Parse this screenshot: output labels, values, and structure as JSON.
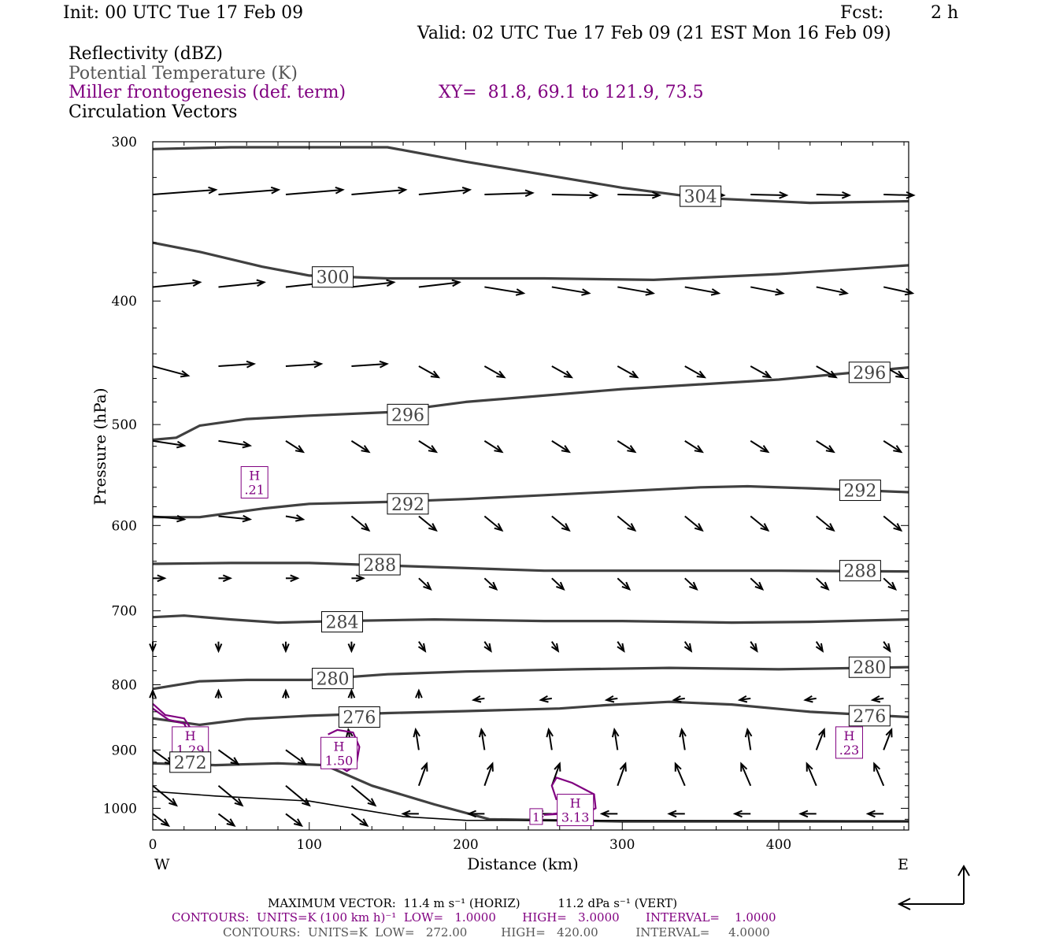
{
  "header": {
    "init": "Init: 00 UTC Tue 17 Feb 09",
    "fcst_label": "Fcst:",
    "fcst_value": "2 h",
    "valid": "Valid: 02 UTC Tue 17 Feb 09 (21 EST Mon 16 Feb 09)",
    "field1": "Reflectivity (dBZ)",
    "field2": "Potential Temperature (K)",
    "field3": "Miller frontogenesis (def. term)",
    "xy": "XY=  81.8, 69.1 to 121.9, 73.5",
    "field4": "Circulation Vectors"
  },
  "footer": {
    "max_vector_line": "MAXIMUM VECTOR:  11.4 m s⁻¹ (HORIZ)          11.2 dPa s⁻¹ (VERT)",
    "contours_purple": "CONTOURS:  UNITS=K (100 km h)⁻¹  LOW=   1.0000       HIGH=   3.0000       INTERVAL=    1.0000",
    "contours_gray": "CONTOURS:  UNITS=K  LOW=   272.00         HIGH=   420.00          INTERVAL=     4.0000"
  },
  "colors": {
    "theta": "#404040",
    "frontogenesis": "#800080",
    "vectors": "#000000"
  },
  "chart_data": {
    "type": "line",
    "xlabel": "Distance (km)",
    "ylabel": "Pressure (hPa)",
    "xlim": [
      0,
      483
    ],
    "ylim": [
      1040,
      300
    ],
    "y_scale": "log-pressure (inverted)",
    "x_ticks": [
      0,
      100,
      200,
      300,
      400
    ],
    "y_ticks": [
      300,
      400,
      500,
      600,
      700,
      800,
      900,
      1000
    ],
    "x_end_labels": {
      "left": "W",
      "right": "E"
    },
    "theta_contours": [
      {
        "label": "304",
        "label_at": [
          350,
          331
        ],
        "points": [
          [
            0,
            304
          ],
          [
            50,
            303
          ],
          [
            150,
            303
          ],
          [
            200,
            311
          ],
          [
            300,
            326
          ],
          [
            350,
            332
          ],
          [
            420,
            335
          ],
          [
            483,
            334
          ]
        ]
      },
      {
        "label": "300",
        "label_at": [
          115,
          383
        ],
        "points": [
          [
            0,
            360
          ],
          [
            30,
            366
          ],
          [
            70,
            376
          ],
          [
            100,
            382
          ],
          [
            150,
            384
          ],
          [
            250,
            384
          ],
          [
            320,
            385
          ],
          [
            400,
            381
          ],
          [
            483,
            375
          ]
        ]
      },
      {
        "label": "296",
        "label_at": [
          163,
          491
        ],
        "points": [
          [
            0,
            514
          ],
          [
            15,
            512
          ],
          [
            30,
            501
          ],
          [
            60,
            495
          ],
          [
            100,
            492
          ],
          [
            150,
            489
          ],
          [
            200,
            480
          ],
          [
            300,
            469
          ],
          [
            400,
            461
          ],
          [
            483,
            451
          ]
        ]
      },
      {
        "label": "296",
        "label_at": [
          458,
          455
        ],
        "points": []
      },
      {
        "label": "292",
        "label_at": [
          163,
          577
        ],
        "points": [
          [
            0,
            591
          ],
          [
            30,
            591
          ],
          [
            70,
            582
          ],
          [
            100,
            577
          ],
          [
            150,
            575
          ],
          [
            200,
            572
          ],
          [
            250,
            568
          ],
          [
            300,
            564
          ],
          [
            350,
            560
          ],
          [
            380,
            559
          ],
          [
            420,
            561
          ],
          [
            483,
            565
          ]
        ]
      },
      {
        "label": "292",
        "label_at": [
          452,
          563
        ],
        "points": []
      },
      {
        "label": "288",
        "label_at": [
          145,
          644
        ],
        "points": [
          [
            0,
            643
          ],
          [
            50,
            642
          ],
          [
            100,
            642
          ],
          [
            150,
            645
          ],
          [
            200,
            648
          ],
          [
            250,
            651
          ],
          [
            300,
            651
          ],
          [
            350,
            651
          ],
          [
            400,
            651
          ],
          [
            483,
            652
          ]
        ]
      },
      {
        "label": "288",
        "label_at": [
          452,
          651
        ],
        "points": []
      },
      {
        "label": "284",
        "label_at": [
          121,
          714
        ],
        "points": [
          [
            0,
            708
          ],
          [
            20,
            706
          ],
          [
            50,
            711
          ],
          [
            80,
            715
          ],
          [
            120,
            713
          ],
          [
            180,
            711
          ],
          [
            250,
            713
          ],
          [
            300,
            713
          ],
          [
            370,
            715
          ],
          [
            420,
            714
          ],
          [
            483,
            711
          ]
        ]
      },
      {
        "label": "284",
        "label_at": [
          121,
          714
        ],
        "points": []
      },
      {
        "label": "280",
        "label_at": [
          115,
          791
        ],
        "points": [
          [
            0,
            806
          ],
          [
            30,
            795
          ],
          [
            60,
            793
          ],
          [
            100,
            793
          ],
          [
            150,
            785
          ],
          [
            200,
            781
          ],
          [
            270,
            778
          ],
          [
            330,
            776
          ],
          [
            400,
            778
          ],
          [
            483,
            775
          ]
        ]
      },
      {
        "label": "280",
        "label_at": [
          458,
          775
        ],
        "points": []
      },
      {
        "label": "276",
        "label_at": [
          132,
          848
        ],
        "points": [
          [
            0,
            850
          ],
          [
            30,
            860
          ],
          [
            60,
            851
          ],
          [
            100,
            846
          ],
          [
            150,
            842
          ],
          [
            200,
            839
          ],
          [
            260,
            835
          ],
          [
            290,
            830
          ],
          [
            330,
            825
          ],
          [
            370,
            829
          ],
          [
            420,
            840
          ],
          [
            483,
            848
          ]
        ]
      },
      {
        "label": "276",
        "label_at": [
          458,
          846
        ],
        "points": []
      },
      {
        "label": "272",
        "label_at": [
          24,
          920
        ],
        "points": [
          [
            0,
            922
          ],
          [
            40,
            925
          ],
          [
            80,
            922
          ],
          [
            110,
            925
          ],
          [
            140,
            960
          ],
          [
            180,
            993
          ],
          [
            215,
            1020
          ],
          [
            300,
            1024
          ],
          [
            483,
            1024
          ]
        ]
      },
      {
        "label": "",
        "label_at": null,
        "points": [
          [
            0,
            970
          ],
          [
            40,
            978
          ],
          [
            100,
            987
          ],
          [
            160,
            1015
          ],
          [
            200,
            1022
          ],
          [
            483,
            1023
          ]
        ]
      }
    ],
    "frontogenesis_maxima": [
      {
        "label": "H",
        "value": ".21",
        "x": 65,
        "p": 555
      },
      {
        "label": "H",
        "value": "1.29",
        "x": 24,
        "p": 888
      },
      {
        "label": "H",
        "value": "1.50",
        "x": 119,
        "p": 905
      },
      {
        "label": "H",
        "value": "3.13",
        "x": 270,
        "p": 1003
      },
      {
        "label": "H",
        "value": ".23",
        "x": 445,
        "p": 888
      }
    ],
    "frontogenesis_contour_labels": [
      {
        "label": "1",
        "x": 245,
        "p": 1015
      }
    ],
    "vectors_rows_p": [
      330,
      390,
      450,
      515,
      590,
      660,
      740,
      820,
      900,
      960,
      1010
    ],
    "max_vector": {
      "horiz": 11.4,
      "vert": 11.2
    }
  }
}
